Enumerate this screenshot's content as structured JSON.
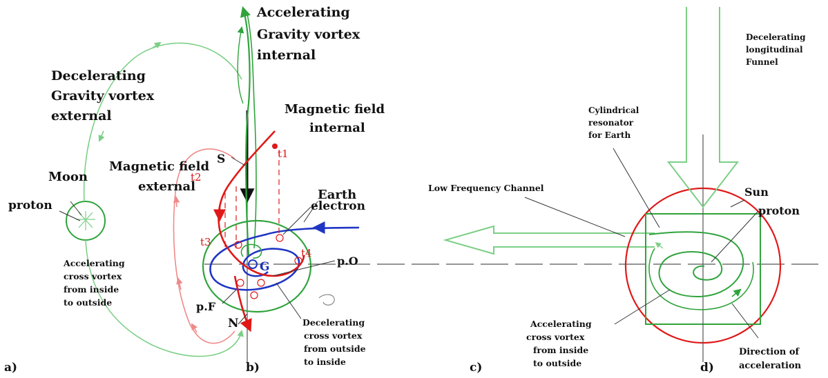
{
  "labels": {
    "acc_gravity_internal": [
      "Accelerating",
      "Gravity vortex",
      "internal"
    ],
    "dec_gravity_external": [
      "Decelerating",
      "Gravity vortex",
      "external"
    ],
    "magnetic_internal": [
      "Magnetic field",
      "internal"
    ],
    "magnetic_external": [
      "Magnetic field",
      "external"
    ],
    "moon": "Moon",
    "proton_left": "proton",
    "acc_cross_left": [
      "Accelerating",
      "cross vortex",
      "from inside",
      "to outside"
    ],
    "s": "S",
    "n": "N",
    "g": "G",
    "pF": "p.F",
    "pO": "p.O",
    "earth": "Earth",
    "electron": "electron",
    "t1": "t1",
    "t2": "t2",
    "t3": "t3",
    "t4": "t4",
    "dec_cross": [
      "Decelerating",
      "cross vortex",
      "from outside",
      "to inside"
    ],
    "low_freq": "Low Frequency  Channel",
    "cyl_res": [
      "Cylindrical",
      "resonator",
      "for Earth"
    ],
    "dec_funnel": [
      "Decelerating",
      "longitudinal",
      "Funnel"
    ],
    "sun": "Sun",
    "proton_right": "proton",
    "acc_cross_right": [
      "Accelerating",
      "cross vortex",
      "from inside",
      "to outside"
    ],
    "dir_acc": [
      "Direction of",
      "acceleration"
    ],
    "pa": "a)",
    "pb": "b)",
    "pc": "c)",
    "pd": "d)"
  },
  "colors": {
    "green": "#2fa33c",
    "light_green": "#7ccf86",
    "red": "#e01818",
    "pink": "#ef8a8a",
    "blue": "#1f35c4",
    "black": "#111111",
    "gray": "#555555"
  }
}
